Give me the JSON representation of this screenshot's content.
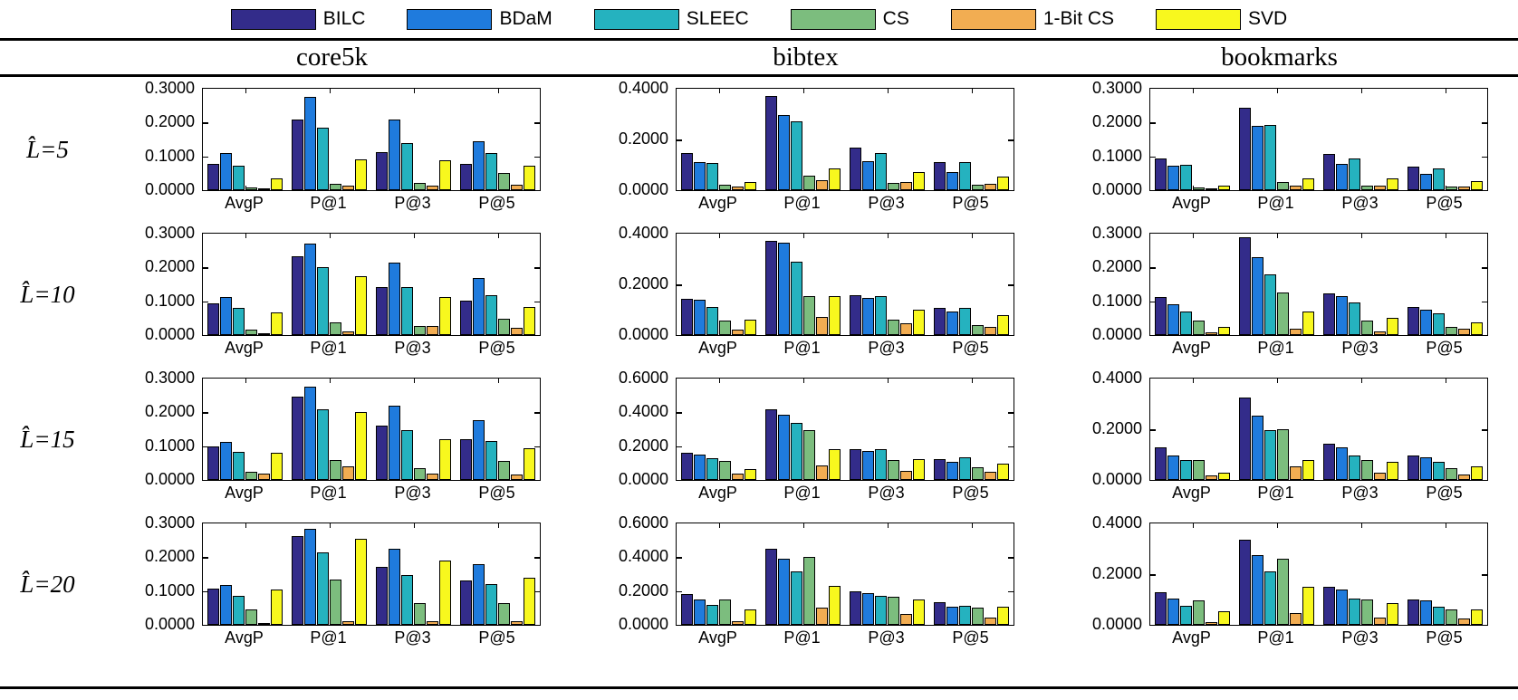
{
  "legend": {
    "series": [
      {
        "name": "BILC",
        "color": "#332c8a"
      },
      {
        "name": "BDaM",
        "color": "#1f7bdd"
      },
      {
        "name": "SLEEC",
        "color": "#25b2bf"
      },
      {
        "name": "CS",
        "color": "#7cbd7e"
      },
      {
        "name": "1-Bit CS",
        "color": "#f2ad52"
      },
      {
        "name": "SVD",
        "color": "#f8f81e"
      }
    ]
  },
  "columns": [
    "core5k",
    "bibtex",
    "bookmarks"
  ],
  "row_labels": [
    "L̂=5",
    "L̂=10",
    "L̂=15",
    "L̂=20"
  ],
  "categories": [
    "AvgP",
    "P@1",
    "P@3",
    "P@5"
  ],
  "chart_data": [
    {
      "dataset": "core5k",
      "L": "L̂=5",
      "type": "bar",
      "ylim": [
        0,
        0.3
      ],
      "yticks": [
        0,
        0.1,
        0.2,
        0.3
      ],
      "categories": [
        "AvgP",
        "P@1",
        "P@3",
        "P@5"
      ],
      "series": [
        {
          "name": "BILC",
          "values": [
            0.078,
            0.21,
            0.113,
            0.078
          ]
        },
        {
          "name": "BDaM",
          "values": [
            0.11,
            0.275,
            0.208,
            0.145
          ]
        },
        {
          "name": "SLEEC",
          "values": [
            0.073,
            0.186,
            0.14,
            0.111
          ]
        },
        {
          "name": "CS",
          "values": [
            0.008,
            0.02,
            0.022,
            0.05
          ]
        },
        {
          "name": "1-Bit CS",
          "values": [
            0.005,
            0.013,
            0.013,
            0.016
          ]
        },
        {
          "name": "SVD",
          "values": [
            0.035,
            0.092,
            0.089,
            0.072
          ]
        }
      ]
    },
    {
      "dataset": "bibtex",
      "L": "L̂=5",
      "type": "bar",
      "ylim": [
        0,
        0.4
      ],
      "yticks": [
        0,
        0.2,
        0.4
      ],
      "categories": [
        "AvgP",
        "P@1",
        "P@3",
        "P@5"
      ],
      "series": [
        {
          "name": "BILC",
          "values": [
            0.145,
            0.37,
            0.168,
            0.112
          ]
        },
        {
          "name": "BDaM",
          "values": [
            0.112,
            0.295,
            0.115,
            0.073
          ]
        },
        {
          "name": "SLEEC",
          "values": [
            0.108,
            0.27,
            0.148,
            0.112
          ]
        },
        {
          "name": "CS",
          "values": [
            0.02,
            0.058,
            0.028,
            0.02
          ]
        },
        {
          "name": "1-Bit CS",
          "values": [
            0.016,
            0.04,
            0.032,
            0.026
          ]
        },
        {
          "name": "SVD",
          "values": [
            0.033,
            0.085,
            0.07,
            0.055
          ]
        }
      ]
    },
    {
      "dataset": "bookmarks",
      "L": "L̂=5",
      "type": "bar",
      "ylim": [
        0,
        0.3
      ],
      "yticks": [
        0,
        0.1,
        0.2,
        0.3
      ],
      "categories": [
        "AvgP",
        "P@1",
        "P@3",
        "P@5"
      ],
      "series": [
        {
          "name": "BILC",
          "values": [
            0.095,
            0.245,
            0.108,
            0.07
          ]
        },
        {
          "name": "BDaM",
          "values": [
            0.073,
            0.19,
            0.079,
            0.048
          ]
        },
        {
          "name": "SLEEC",
          "values": [
            0.075,
            0.192,
            0.095,
            0.065
          ]
        },
        {
          "name": "CS",
          "values": [
            0.008,
            0.023,
            0.013,
            0.012
          ]
        },
        {
          "name": "1-Bit CS",
          "values": [
            0.005,
            0.013,
            0.013,
            0.011
          ]
        },
        {
          "name": "SVD",
          "values": [
            0.013,
            0.034,
            0.034,
            0.028
          ]
        }
      ]
    },
    {
      "dataset": "core5k",
      "L": "L̂=10",
      "type": "bar",
      "ylim": [
        0,
        0.3
      ],
      "yticks": [
        0,
        0.1,
        0.2,
        0.3
      ],
      "categories": [
        "AvgP",
        "P@1",
        "P@3",
        "P@5"
      ],
      "series": [
        {
          "name": "BILC",
          "values": [
            0.095,
            0.232,
            0.143,
            0.103
          ]
        },
        {
          "name": "BDaM",
          "values": [
            0.112,
            0.27,
            0.213,
            0.17
          ]
        },
        {
          "name": "SLEEC",
          "values": [
            0.08,
            0.201,
            0.143,
            0.118
          ]
        },
        {
          "name": "CS",
          "values": [
            0.015,
            0.038,
            0.028,
            0.048
          ]
        },
        {
          "name": "1-Bit CS",
          "values": [
            0.005,
            0.012,
            0.028,
            0.022
          ]
        },
        {
          "name": "SVD",
          "values": [
            0.068,
            0.175,
            0.112,
            0.082
          ]
        }
      ]
    },
    {
      "dataset": "bibtex",
      "L": "L̂=10",
      "type": "bar",
      "ylim": [
        0,
        0.4
      ],
      "yticks": [
        0,
        0.2,
        0.4
      ],
      "categories": [
        "AvgP",
        "P@1",
        "P@3",
        "P@5"
      ],
      "series": [
        {
          "name": "BILC",
          "values": [
            0.143,
            0.372,
            0.157,
            0.107
          ]
        },
        {
          "name": "BDaM",
          "values": [
            0.14,
            0.365,
            0.148,
            0.092
          ]
        },
        {
          "name": "SLEEC",
          "values": [
            0.11,
            0.29,
            0.153,
            0.108
          ]
        },
        {
          "name": "CS",
          "values": [
            0.056,
            0.152,
            0.06,
            0.04
          ]
        },
        {
          "name": "1-Bit CS",
          "values": [
            0.023,
            0.072,
            0.047,
            0.032
          ]
        },
        {
          "name": "SVD",
          "values": [
            0.06,
            0.152,
            0.1,
            0.078
          ]
        }
      ]
    },
    {
      "dataset": "bookmarks",
      "L": "L̂=10",
      "type": "bar",
      "ylim": [
        0,
        0.3
      ],
      "yticks": [
        0,
        0.1,
        0.2,
        0.3
      ],
      "categories": [
        "AvgP",
        "P@1",
        "P@3",
        "P@5"
      ],
      "series": [
        {
          "name": "BILC",
          "values": [
            0.113,
            0.288,
            0.122,
            0.083
          ]
        },
        {
          "name": "BDaM",
          "values": [
            0.092,
            0.23,
            0.115,
            0.074
          ]
        },
        {
          "name": "SLEEC",
          "values": [
            0.07,
            0.18,
            0.097,
            0.064
          ]
        },
        {
          "name": "CS",
          "values": [
            0.042,
            0.127,
            0.042,
            0.025
          ]
        },
        {
          "name": "1-Bit CS",
          "values": [
            0.008,
            0.02,
            0.012,
            0.02
          ]
        },
        {
          "name": "SVD",
          "values": [
            0.023,
            0.07,
            0.05,
            0.038
          ]
        }
      ]
    },
    {
      "dataset": "core5k",
      "L": "L̂=15",
      "type": "bar",
      "ylim": [
        0,
        0.3
      ],
      "yticks": [
        0,
        0.1,
        0.2,
        0.3
      ],
      "categories": [
        "AvgP",
        "P@1",
        "P@3",
        "P@5"
      ],
      "series": [
        {
          "name": "BILC",
          "values": [
            0.1,
            0.247,
            0.162,
            0.12
          ]
        },
        {
          "name": "BDaM",
          "values": [
            0.113,
            0.277,
            0.22,
            0.178
          ]
        },
        {
          "name": "SLEEC",
          "values": [
            0.083,
            0.209,
            0.148,
            0.115
          ]
        },
        {
          "name": "CS",
          "values": [
            0.023,
            0.06,
            0.035,
            0.057
          ]
        },
        {
          "name": "1-Bit CS",
          "values": [
            0.018,
            0.04,
            0.02,
            0.015
          ]
        },
        {
          "name": "SVD",
          "values": [
            0.08,
            0.202,
            0.12,
            0.094
          ]
        }
      ]
    },
    {
      "dataset": "bibtex",
      "L": "L̂=15",
      "type": "bar",
      "ylim": [
        0,
        0.6
      ],
      "yticks": [
        0,
        0.2,
        0.4,
        0.6
      ],
      "categories": [
        "AvgP",
        "P@1",
        "P@3",
        "P@5"
      ],
      "series": [
        {
          "name": "BILC",
          "values": [
            0.162,
            0.418,
            0.182,
            0.122
          ]
        },
        {
          "name": "BDaM",
          "values": [
            0.152,
            0.388,
            0.172,
            0.107
          ]
        },
        {
          "name": "SLEEC",
          "values": [
            0.127,
            0.337,
            0.18,
            0.133
          ]
        },
        {
          "name": "CS",
          "values": [
            0.112,
            0.295,
            0.117,
            0.075
          ]
        },
        {
          "name": "1-Bit CS",
          "values": [
            0.035,
            0.085,
            0.055,
            0.048
          ]
        },
        {
          "name": "SVD",
          "values": [
            0.065,
            0.18,
            0.125,
            0.098
          ]
        }
      ]
    },
    {
      "dataset": "bookmarks",
      "L": "L̂=15",
      "type": "bar",
      "ylim": [
        0,
        0.4
      ],
      "yticks": [
        0,
        0.2,
        0.4
      ],
      "categories": [
        "AvgP",
        "P@1",
        "P@3",
        "P@5"
      ],
      "series": [
        {
          "name": "BILC",
          "values": [
            0.128,
            0.325,
            0.143,
            0.098
          ]
        },
        {
          "name": "BDaM",
          "values": [
            0.098,
            0.252,
            0.128,
            0.088
          ]
        },
        {
          "name": "SLEEC",
          "values": [
            0.078,
            0.196,
            0.098,
            0.07
          ]
        },
        {
          "name": "CS",
          "values": [
            0.078,
            0.2,
            0.078,
            0.048
          ]
        },
        {
          "name": "1-Bit CS",
          "values": [
            0.018,
            0.052,
            0.028,
            0.02
          ]
        },
        {
          "name": "SVD",
          "values": [
            0.028,
            0.08,
            0.07,
            0.055
          ]
        }
      ]
    },
    {
      "dataset": "core5k",
      "L": "L̂=20",
      "type": "bar",
      "ylim": [
        0,
        0.3
      ],
      "yticks": [
        0,
        0.1,
        0.2,
        0.3
      ],
      "categories": [
        "AvgP",
        "P@1",
        "P@3",
        "P@5"
      ],
      "series": [
        {
          "name": "BILC",
          "values": [
            0.108,
            0.263,
            0.172,
            0.13
          ]
        },
        {
          "name": "BDaM",
          "values": [
            0.118,
            0.283,
            0.224,
            0.18
          ]
        },
        {
          "name": "SLEEC",
          "values": [
            0.086,
            0.215,
            0.148,
            0.12
          ]
        },
        {
          "name": "CS",
          "values": [
            0.045,
            0.133,
            0.065,
            0.065
          ]
        },
        {
          "name": "1-Bit CS",
          "values": [
            0.004,
            0.012,
            0.012,
            0.012
          ]
        },
        {
          "name": "SVD",
          "values": [
            0.105,
            0.255,
            0.19,
            0.14
          ]
        }
      ]
    },
    {
      "dataset": "bibtex",
      "L": "L̂=20",
      "type": "bar",
      "ylim": [
        0,
        0.6
      ],
      "yticks": [
        0,
        0.2,
        0.4,
        0.6
      ],
      "categories": [
        "AvgP",
        "P@1",
        "P@3",
        "P@5"
      ],
      "series": [
        {
          "name": "BILC",
          "values": [
            0.18,
            0.45,
            0.2,
            0.132
          ]
        },
        {
          "name": "BDaM",
          "values": [
            0.15,
            0.39,
            0.188,
            0.108
          ]
        },
        {
          "name": "SLEEC",
          "values": [
            0.12,
            0.315,
            0.17,
            0.115
          ]
        },
        {
          "name": "CS",
          "values": [
            0.152,
            0.402,
            0.168,
            0.1
          ]
        },
        {
          "name": "1-Bit CS",
          "values": [
            0.022,
            0.1,
            0.062,
            0.042
          ]
        },
        {
          "name": "SVD",
          "values": [
            0.09,
            0.232,
            0.15,
            0.108
          ]
        }
      ]
    },
    {
      "dataset": "bookmarks",
      "L": "L̂=20",
      "type": "bar",
      "ylim": [
        0,
        0.4
      ],
      "yticks": [
        0,
        0.2,
        0.4
      ],
      "categories": [
        "AvgP",
        "P@1",
        "P@3",
        "P@5"
      ],
      "series": [
        {
          "name": "BILC",
          "values": [
            0.13,
            0.335,
            0.15,
            0.1
          ]
        },
        {
          "name": "BDaM",
          "values": [
            0.105,
            0.275,
            0.14,
            0.095
          ]
        },
        {
          "name": "SLEEC",
          "values": [
            0.075,
            0.21,
            0.105,
            0.07
          ]
        },
        {
          "name": "CS",
          "values": [
            0.095,
            0.26,
            0.1,
            0.06
          ]
        },
        {
          "name": "1-Bit CS",
          "values": [
            0.012,
            0.045,
            0.03,
            0.025
          ]
        },
        {
          "name": "SVD",
          "values": [
            0.055,
            0.15,
            0.085,
            0.06
          ]
        }
      ]
    }
  ]
}
